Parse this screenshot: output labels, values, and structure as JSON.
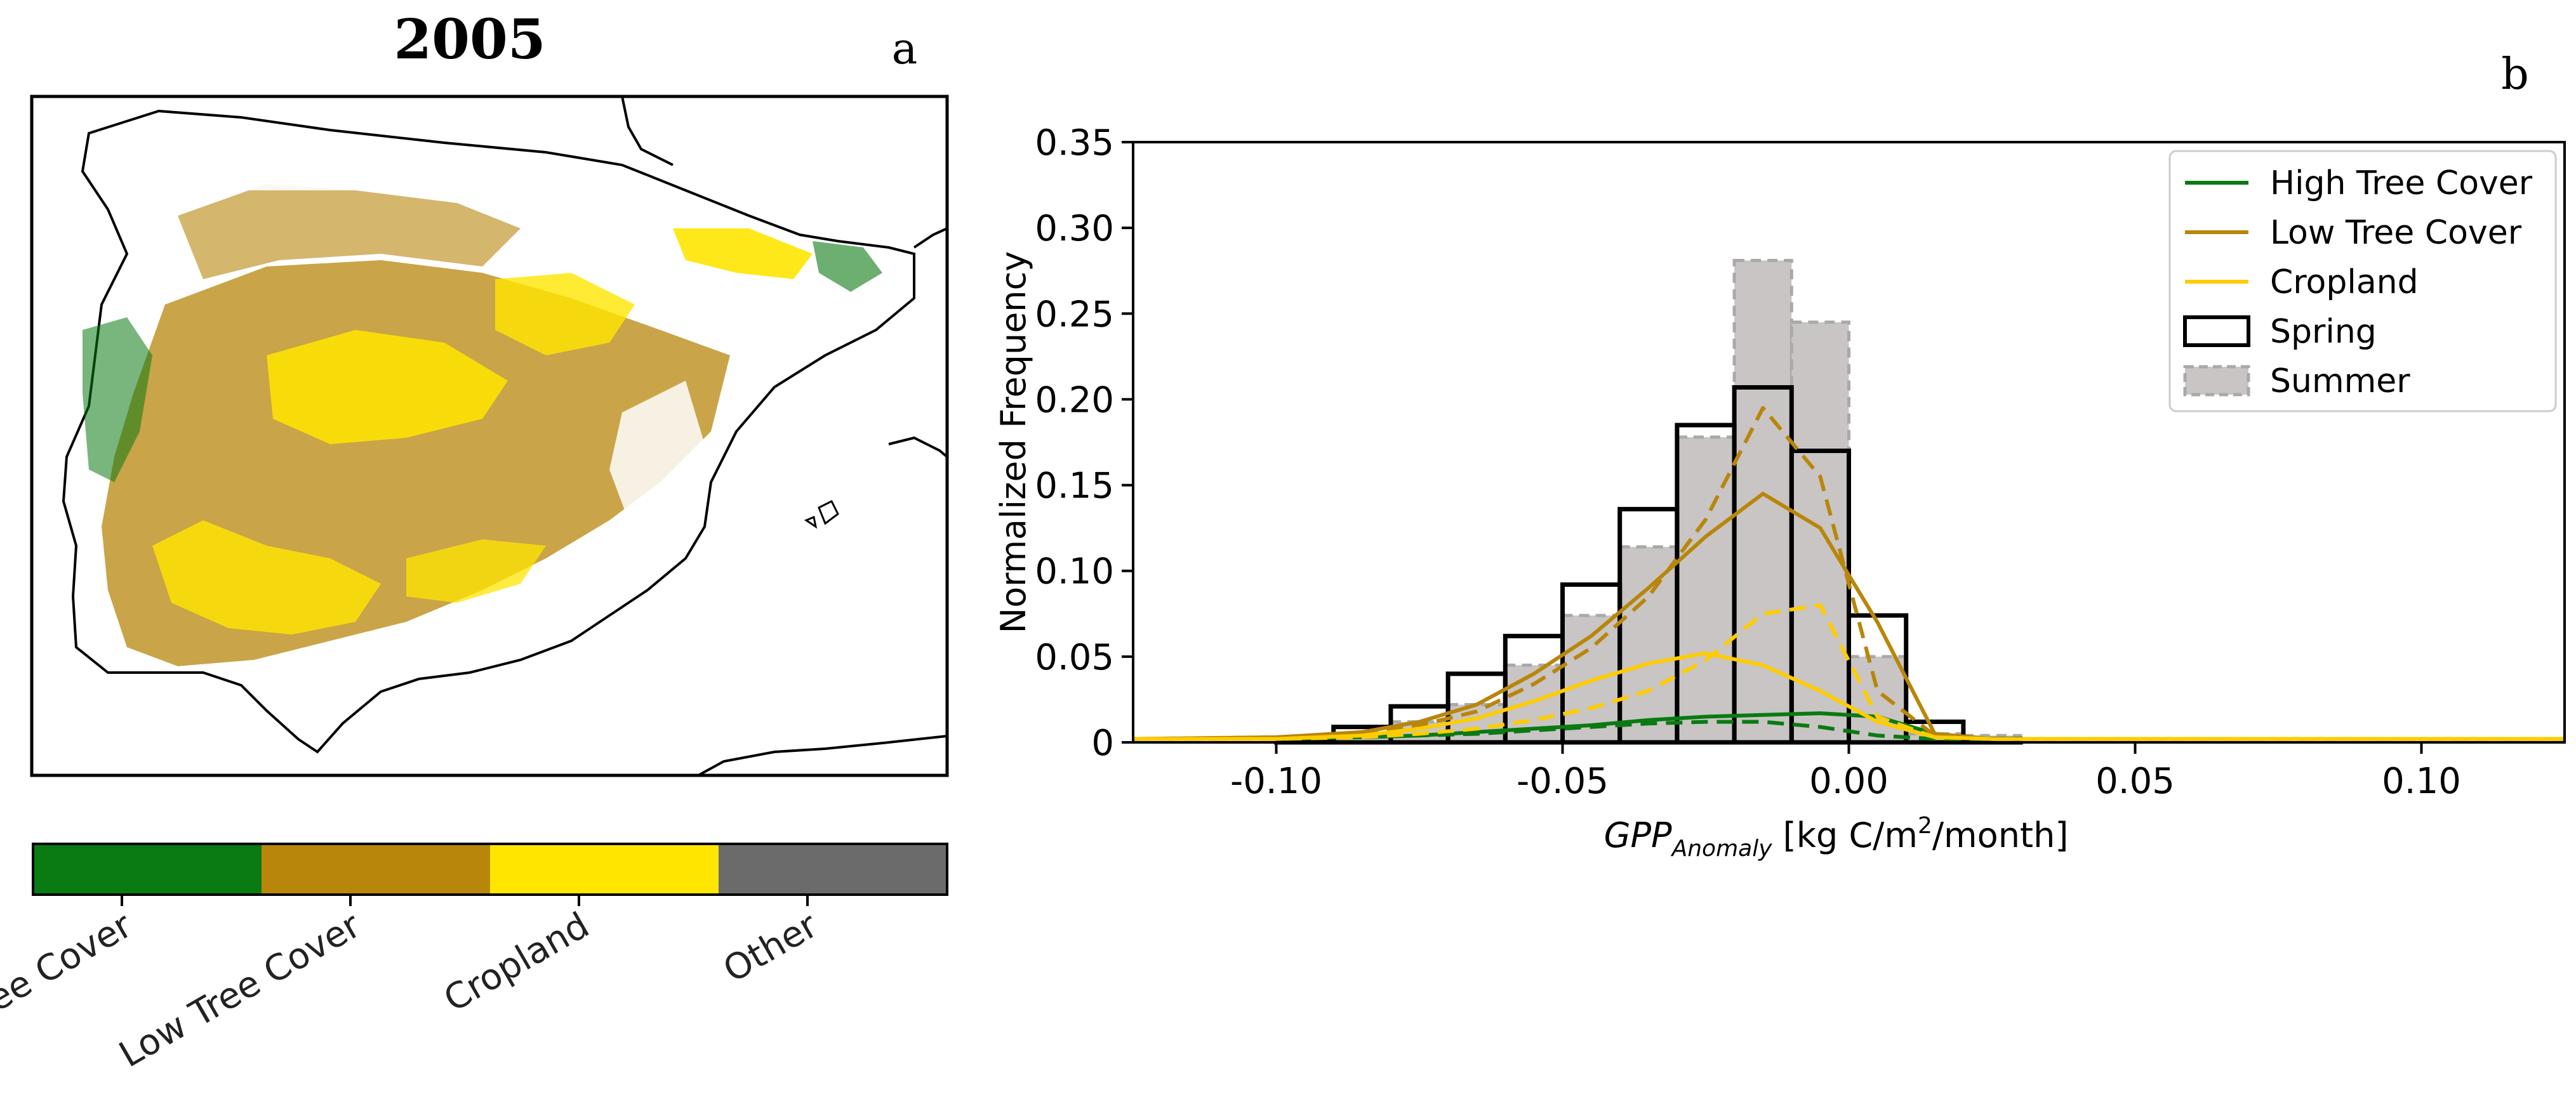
{
  "panel_a": {
    "title": "2005",
    "label": "a",
    "colorbar": {
      "classes": [
        {
          "name": "High Tree Cover",
          "color": "#0a7a12"
        },
        {
          "name": "Low Tree Cover",
          "color": "#b8860b"
        },
        {
          "name": "Cropland",
          "color": "#ffe600"
        },
        {
          "name": "Other",
          "color": "#6b6b6b"
        }
      ]
    }
  },
  "chart_data": {
    "type": "bar",
    "panel_label": "b",
    "title": "",
    "xlabel_main": "GPP",
    "xlabel_sub": "Anomaly",
    "xlabel_units_pre": " [kg C/m",
    "xlabel_units_sup": "2",
    "xlabel_units_post": "/month]",
    "ylabel": "Normalized  Frequency",
    "xlim": [
      -0.125,
      0.125
    ],
    "ylim": [
      0,
      0.35
    ],
    "xticks": [
      -0.1,
      -0.05,
      0.0,
      0.05,
      0.1
    ],
    "xtick_labels": [
      "-0.10",
      "-0.05",
      "0.00",
      "0.05",
      "0.10"
    ],
    "yticks": [
      0,
      0.05,
      0.1,
      0.15,
      0.2,
      0.25,
      0.3,
      0.35
    ],
    "ytick_labels": [
      "0",
      "0.05",
      "0.10",
      "0.15",
      "0.20",
      "0.25",
      "0.30",
      "0.35"
    ],
    "bin_edges": [
      -0.1,
      -0.09,
      -0.08,
      -0.07,
      -0.06,
      -0.05,
      -0.04,
      -0.03,
      -0.02,
      -0.01,
      0.0,
      0.01,
      0.02,
      0.03
    ],
    "histograms": [
      {
        "name": "Spring",
        "values": [
          0.002,
          0.009,
          0.021,
          0.04,
          0.062,
          0.092,
          0.136,
          0.185,
          0.207,
          0.17,
          0.074,
          0.012,
          0.002
        ]
      },
      {
        "name": "Summer",
        "values": [
          0.001,
          0.004,
          0.012,
          0.022,
          0.045,
          0.074,
          0.114,
          0.178,
          0.281,
          0.245,
          0.05,
          0.005,
          0.004
        ]
      }
    ],
    "lines_x": [
      -0.125,
      -0.1,
      -0.085,
      -0.075,
      -0.065,
      -0.055,
      -0.045,
      -0.035,
      -0.025,
      -0.015,
      -0.005,
      0.005,
      0.015,
      0.025,
      0.05,
      0.1,
      0.125
    ],
    "series": [
      {
        "name": "High Tree Cover",
        "season": "Spring",
        "color": "#0a7a12",
        "dash": false,
        "values": [
          0.002,
          0.002,
          0.003,
          0.004,
          0.006,
          0.008,
          0.01,
          0.013,
          0.015,
          0.016,
          0.017,
          0.015,
          0.005,
          0.002,
          0.002,
          0.002,
          0.002
        ]
      },
      {
        "name": "High Tree Cover",
        "season": "Summer",
        "color": "#0a7a12",
        "dash": true,
        "values": [
          0.002,
          0.002,
          0.003,
          0.004,
          0.005,
          0.007,
          0.009,
          0.011,
          0.012,
          0.012,
          0.009,
          0.004,
          0.002,
          0.002,
          0.002,
          0.002,
          0.002
        ]
      },
      {
        "name": "Low Tree Cover",
        "season": "Spring",
        "color": "#b8860b",
        "dash": false,
        "values": [
          0.002,
          0.003,
          0.006,
          0.012,
          0.022,
          0.04,
          0.062,
          0.09,
          0.12,
          0.145,
          0.125,
          0.07,
          0.005,
          0.002,
          0.002,
          0.002,
          0.002
        ]
      },
      {
        "name": "Low Tree Cover",
        "season": "Summer",
        "color": "#b8860b",
        "dash": true,
        "values": [
          0.002,
          0.003,
          0.005,
          0.01,
          0.018,
          0.034,
          0.055,
          0.085,
          0.13,
          0.195,
          0.155,
          0.03,
          0.004,
          0.002,
          0.002,
          0.002,
          0.002
        ]
      },
      {
        "name": "Cropland",
        "season": "Spring",
        "color": "#ffcc00",
        "dash": false,
        "values": [
          0.002,
          0.002,
          0.004,
          0.008,
          0.014,
          0.024,
          0.036,
          0.046,
          0.052,
          0.045,
          0.03,
          0.012,
          0.003,
          0.002,
          0.002,
          0.002,
          0.002
        ]
      },
      {
        "name": "Cropland",
        "season": "Summer",
        "color": "#ffcc00",
        "dash": true,
        "values": [
          0.002,
          0.002,
          0.003,
          0.005,
          0.008,
          0.013,
          0.02,
          0.03,
          0.048,
          0.075,
          0.08,
          0.015,
          0.003,
          0.002,
          0.002,
          0.002,
          0.002
        ]
      }
    ],
    "legend": {
      "placement": "top-right",
      "entries": [
        {
          "label": "High Tree Cover",
          "kind": "line",
          "color": "#0a7a12"
        },
        {
          "label": "Low Tree Cover",
          "kind": "line",
          "color": "#b8860b"
        },
        {
          "label": "Cropland",
          "kind": "line",
          "color": "#ffcc00"
        },
        {
          "label": "Spring",
          "kind": "patch-solid"
        },
        {
          "label": "Summer",
          "kind": "patch-dashed"
        }
      ]
    }
  }
}
